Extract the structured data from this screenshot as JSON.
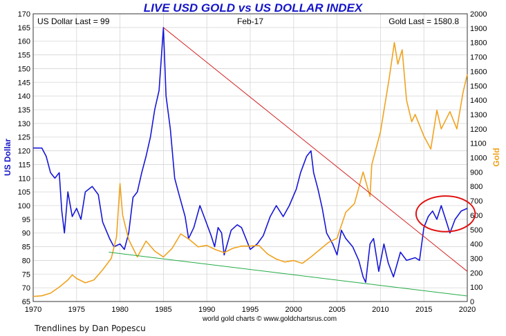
{
  "chart_data": {
    "type": "line",
    "title": "LIVE USD GOLD vs US DOLLAR INDEX",
    "header_left": "US Dollar Last = 99",
    "header_center": "Feb-17",
    "header_right": "Gold Last = 1580.8",
    "ylabel_left": "US Dollar",
    "ylabel_right": "Gold",
    "credit": "world gold charts © www.goldchartsrus.com",
    "xlim": [
      1970,
      2020
    ],
    "ylim_left": [
      65,
      170
    ],
    "ylim_right": [
      0,
      2000
    ],
    "x_ticks": [
      1970,
      1975,
      1980,
      1985,
      1990,
      1995,
      2000,
      2005,
      2010,
      2015,
      2020
    ],
    "y_ticks_left": [
      65,
      70,
      75,
      80,
      85,
      90,
      95,
      100,
      105,
      110,
      115,
      120,
      125,
      130,
      135,
      140,
      145,
      150,
      155,
      160,
      165,
      170
    ],
    "y_ticks_right": [
      0,
      100,
      200,
      300,
      400,
      500,
      600,
      700,
      800,
      900,
      1000,
      1100,
      1200,
      1300,
      1400,
      1500,
      1600,
      1700,
      1800,
      1900,
      2000
    ],
    "grid": true,
    "series": [
      {
        "name": "US Dollar",
        "axis": "left",
        "color": "#1515d8",
        "points": [
          [
            1970,
            121
          ],
          [
            1971,
            121
          ],
          [
            1971.5,
            118
          ],
          [
            1972,
            112
          ],
          [
            1972.5,
            110
          ],
          [
            1973,
            112
          ],
          [
            1973.3,
            98
          ],
          [
            1973.6,
            90
          ],
          [
            1974,
            105
          ],
          [
            1974.5,
            96
          ],
          [
            1975,
            99
          ],
          [
            1975.5,
            95
          ],
          [
            1976,
            105
          ],
          [
            1976.8,
            107
          ],
          [
            1977.5,
            104
          ],
          [
            1978,
            94
          ],
          [
            1978.8,
            88
          ],
          [
            1979.3,
            85
          ],
          [
            1980,
            86
          ],
          [
            1980.5,
            84
          ],
          [
            1981,
            90
          ],
          [
            1981.5,
            103
          ],
          [
            1982,
            105
          ],
          [
            1982.5,
            112
          ],
          [
            1983,
            118
          ],
          [
            1983.5,
            125
          ],
          [
            1984,
            135
          ],
          [
            1984.5,
            142
          ],
          [
            1985,
            165
          ],
          [
            1985.3,
            140
          ],
          [
            1985.8,
            128
          ],
          [
            1986.3,
            110
          ],
          [
            1986.8,
            104
          ],
          [
            1987.5,
            96
          ],
          [
            1987.9,
            88
          ],
          [
            1988.5,
            92
          ],
          [
            1989.2,
            100
          ],
          [
            1989.8,
            95
          ],
          [
            1990.5,
            89
          ],
          [
            1990.9,
            85
          ],
          [
            1991.3,
            92
          ],
          [
            1991.7,
            90
          ],
          [
            1992,
            82
          ],
          [
            1992.8,
            91
          ],
          [
            1993.5,
            93
          ],
          [
            1994,
            92
          ],
          [
            1995,
            84
          ],
          [
            1995.8,
            86
          ],
          [
            1996.5,
            89
          ],
          [
            1997.3,
            96
          ],
          [
            1998,
            100
          ],
          [
            1998.8,
            96
          ],
          [
            1999.5,
            100
          ],
          [
            2000.3,
            106
          ],
          [
            2000.8,
            112
          ],
          [
            2001.5,
            118
          ],
          [
            2002,
            120
          ],
          [
            2002.3,
            112
          ],
          [
            2002.8,
            106
          ],
          [
            2003.3,
            99
          ],
          [
            2003.8,
            90
          ],
          [
            2004.5,
            86
          ],
          [
            2005,
            82
          ],
          [
            2005.5,
            91
          ],
          [
            2006,
            88
          ],
          [
            2006.8,
            85
          ],
          [
            2007.5,
            80
          ],
          [
            2008,
            74
          ],
          [
            2008.3,
            72
          ],
          [
            2008.8,
            86
          ],
          [
            2009.2,
            88
          ],
          [
            2009.8,
            76
          ],
          [
            2010.4,
            86
          ],
          [
            2010.9,
            79
          ],
          [
            2011.5,
            74
          ],
          [
            2012.3,
            83
          ],
          [
            2013,
            80
          ],
          [
            2014,
            81
          ],
          [
            2014.5,
            80
          ],
          [
            2015,
            92
          ],
          [
            2015.5,
            96
          ],
          [
            2016,
            98
          ],
          [
            2016.5,
            95
          ],
          [
            2017,
            100
          ],
          [
            2017.6,
            94
          ],
          [
            2018,
            90
          ],
          [
            2018.6,
            95
          ],
          [
            2019.3,
            98
          ],
          [
            2020,
            99
          ]
        ]
      },
      {
        "name": "Gold",
        "axis": "right",
        "color": "#f0a21e",
        "points": [
          [
            1970,
            35
          ],
          [
            1971,
            40
          ],
          [
            1972,
            58
          ],
          [
            1973,
            100
          ],
          [
            1974,
            150
          ],
          [
            1974.5,
            185
          ],
          [
            1975,
            160
          ],
          [
            1976,
            130
          ],
          [
            1977,
            150
          ],
          [
            1978,
            220
          ],
          [
            1979,
            300
          ],
          [
            1979.6,
            450
          ],
          [
            1980,
            820
          ],
          [
            1980.3,
            600
          ],
          [
            1981,
            430
          ],
          [
            1982,
            310
          ],
          [
            1983,
            420
          ],
          [
            1984,
            350
          ],
          [
            1985,
            310
          ],
          [
            1986,
            370
          ],
          [
            1987,
            470
          ],
          [
            1988,
            430
          ],
          [
            1989,
            380
          ],
          [
            1990,
            390
          ],
          [
            1991,
            360
          ],
          [
            1992,
            340
          ],
          [
            1993,
            370
          ],
          [
            1994,
            385
          ],
          [
            1995,
            385
          ],
          [
            1996,
            390
          ],
          [
            1997,
            330
          ],
          [
            1998,
            295
          ],
          [
            1999,
            275
          ],
          [
            2000,
            285
          ],
          [
            2001,
            265
          ],
          [
            2002,
            310
          ],
          [
            2003,
            360
          ],
          [
            2004,
            410
          ],
          [
            2005,
            440
          ],
          [
            2006,
            620
          ],
          [
            2007,
            680
          ],
          [
            2008,
            900
          ],
          [
            2008.8,
            730
          ],
          [
            2009,
            950
          ],
          [
            2010,
            1180
          ],
          [
            2011,
            1550
          ],
          [
            2011.6,
            1800
          ],
          [
            2012,
            1650
          ],
          [
            2012.5,
            1750
          ],
          [
            2013,
            1400
          ],
          [
            2013.6,
            1250
          ],
          [
            2014,
            1300
          ],
          [
            2015,
            1150
          ],
          [
            2015.8,
            1060
          ],
          [
            2016.5,
            1330
          ],
          [
            2017,
            1200
          ],
          [
            2018,
            1320
          ],
          [
            2018.8,
            1200
          ],
          [
            2019.5,
            1450
          ],
          [
            2020,
            1580
          ]
        ]
      }
    ],
    "trendlines": [
      {
        "color": "#d42020",
        "from": [
          1985,
          165
        ],
        "to": [
          2020,
          76
        ]
      },
      {
        "color": "#22aa44",
        "from": [
          1978.7,
          83
        ],
        "to": [
          2020,
          67
        ]
      }
    ],
    "annotation": {
      "shape": "ellipse",
      "color": "#e01010",
      "center": [
        2017.5,
        97
      ],
      "radius_x": 3.4,
      "radius_y": 6.5
    }
  },
  "footer": {
    "caption": "Trendlines by Dan Popescu"
  }
}
